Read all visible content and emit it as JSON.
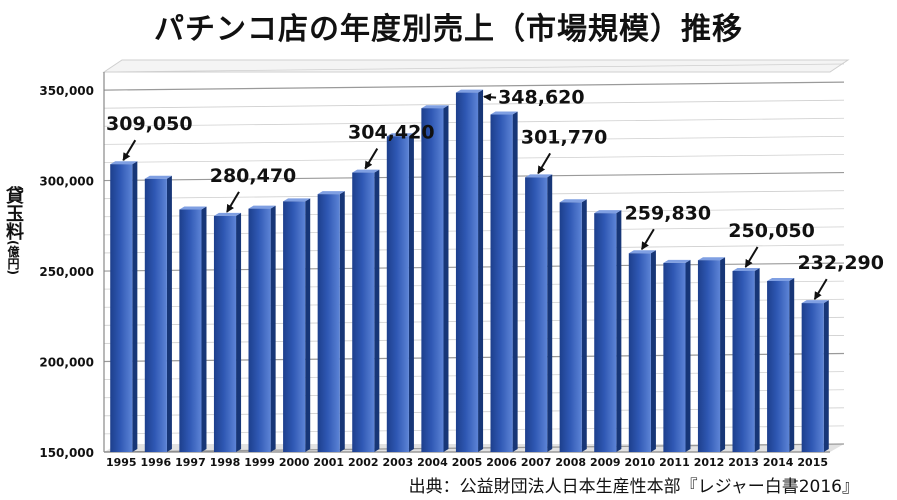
{
  "chart_data": {
    "type": "bar",
    "title": "パチンコ店の年度別売上（市場規模）推移",
    "ylabel": "貸玉料",
    "ylabel_unit": "(億円)",
    "source": "出典：公益財団法人日本生産性本部『レジャー白書2016』",
    "categories": [
      "1995",
      "1996",
      "1997",
      "1998",
      "1999",
      "2000",
      "2001",
      "2002",
      "2003",
      "2004",
      "2005",
      "2006",
      "2007",
      "2008",
      "2009",
      "2010",
      "2011",
      "2012",
      "2013",
      "2014",
      "2015"
    ],
    "values": [
      309050,
      301000,
      284000,
      280470,
      284500,
      288500,
      292500,
      304420,
      324500,
      340000,
      348620,
      336500,
      301770,
      288000,
      282000,
      259830,
      254500,
      256000,
      250050,
      244500,
      232290
    ],
    "ylim": [
      150000,
      360000
    ],
    "yticks": [
      150000,
      200000,
      250000,
      300000,
      350000
    ],
    "ytick_labels": [
      "150,000",
      "200,000",
      "250,000",
      "300,000",
      "350,000"
    ],
    "grid": true,
    "bar_color": "#2f58b4",
    "annotations": [
      {
        "category": "1995",
        "label": "309,050"
      },
      {
        "category": "1998",
        "label": "280,470"
      },
      {
        "category": "2002",
        "label": "304,420"
      },
      {
        "category": "2005",
        "label": "348,620"
      },
      {
        "category": "2007",
        "label": "301,770"
      },
      {
        "category": "2010",
        "label": "259,830"
      },
      {
        "category": "2013",
        "label": "250,050"
      },
      {
        "category": "2015",
        "label": "232,290"
      }
    ]
  }
}
